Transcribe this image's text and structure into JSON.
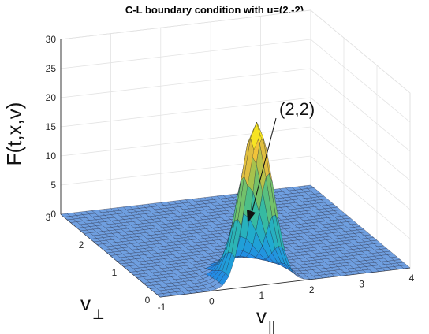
{
  "chart_data": {
    "type": "surface",
    "title": "C-L boundary condition with u=(2,-2)",
    "xlabel": "v",
    "xlabel_subscript": "||",
    "ylabel": "v",
    "ylabel_subscript": "⊥",
    "zlabel": "F(t,x,v)",
    "xlim": [
      -1,
      4
    ],
    "ylim": [
      0,
      3
    ],
    "zlim": [
      0,
      30
    ],
    "xticks": [
      "-1",
      "0",
      "1",
      "2",
      "3",
      "4"
    ],
    "yticks": [
      "0",
      "1",
      "2",
      "3"
    ],
    "zticks": [
      "0",
      "5",
      "10",
      "15",
      "20",
      "25",
      "30"
    ],
    "grid": true,
    "colormap": "parula",
    "surface": {
      "shape": "gaussian-peak",
      "peak_center": [
        1.0,
        0.1
      ],
      "peak_height": 27.5,
      "peak_width": 0.28
    },
    "annotation": {
      "text": "(2,2)"
    },
    "colors": {
      "flat_surface": "#6f9fe0",
      "mesh_lines": "#1a1a2e"
    }
  }
}
